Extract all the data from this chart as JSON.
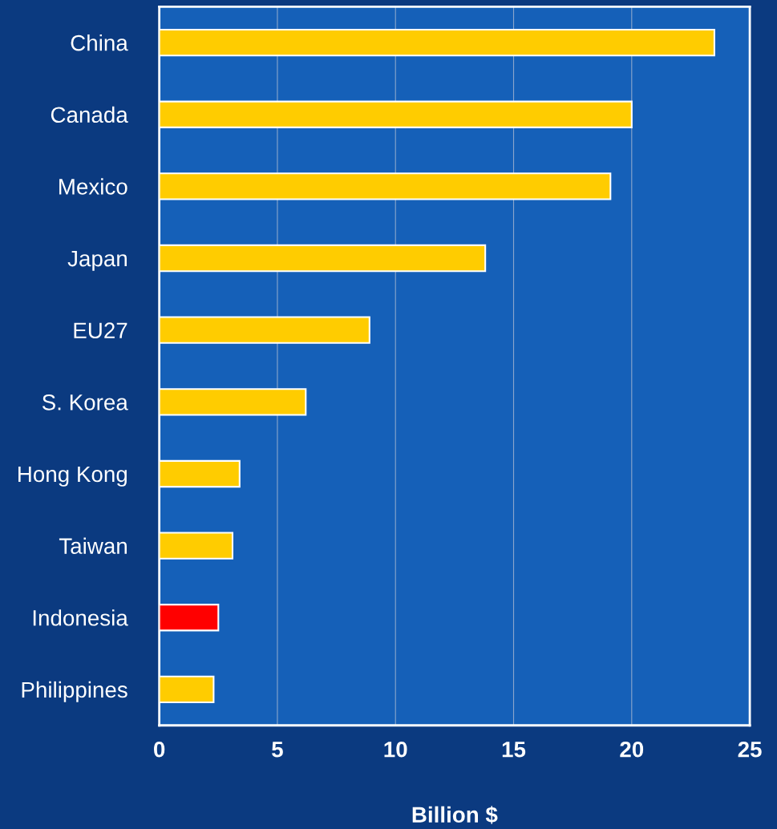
{
  "chart_data": {
    "type": "bar",
    "orientation": "horizontal",
    "xlabel": "Billion $",
    "categories": [
      "China",
      "Canada",
      "Mexico",
      "Japan",
      "EU27",
      "S. Korea",
      "Hong Kong",
      "Taiwan",
      "Indonesia",
      "Philippines"
    ],
    "values": [
      23.5,
      20.0,
      19.1,
      13.8,
      8.9,
      6.2,
      3.4,
      3.1,
      2.5,
      2.3
    ],
    "colors": [
      "#ffcc00",
      "#ffcc00",
      "#ffcc00",
      "#ffcc00",
      "#ffcc00",
      "#ffcc00",
      "#ffcc00",
      "#ffcc00",
      "#ff0000",
      "#ffcc00"
    ],
    "xlim": [
      0,
      25
    ],
    "xticks": [
      0,
      5,
      10,
      15,
      20,
      25
    ],
    "grid": "x"
  }
}
